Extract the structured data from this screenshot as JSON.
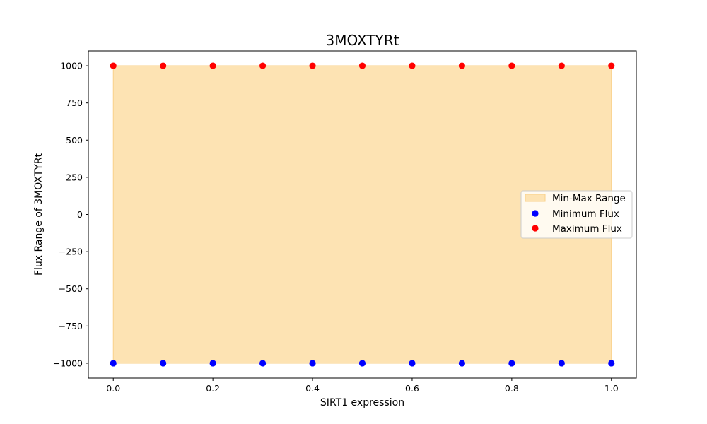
{
  "chart_data": {
    "type": "scatter",
    "title": "3MOXTYRt",
    "xlabel": "SIRT1 expression",
    "ylabel": "Flux Range of 3MOXTYRt",
    "xlim": [
      -0.05,
      1.05
    ],
    "ylim": [
      -1100,
      1100
    ],
    "grid": false,
    "x_ticks": [
      0.0,
      0.2,
      0.4,
      0.6,
      0.8,
      1.0
    ],
    "x_tick_labels": [
      "0.0",
      "0.2",
      "0.4",
      "0.6",
      "0.8",
      "1.0"
    ],
    "y_ticks": [
      -1000,
      -750,
      -500,
      -250,
      0,
      250,
      500,
      750,
      1000
    ],
    "y_tick_labels": [
      "−1000",
      "−750",
      "−500",
      "−250",
      "0",
      "250",
      "500",
      "750",
      "1000"
    ],
    "x": [
      0.0,
      0.1,
      0.2,
      0.3,
      0.4,
      0.5,
      0.6,
      0.7,
      0.8,
      0.9,
      1.0
    ],
    "fill_range": {
      "name": "Min-Max Range",
      "lower": [
        -1000,
        -1000,
        -1000,
        -1000,
        -1000,
        -1000,
        -1000,
        -1000,
        -1000,
        -1000,
        -1000
      ],
      "upper": [
        1000,
        1000,
        1000,
        1000,
        1000,
        1000,
        1000,
        1000,
        1000,
        1000,
        1000
      ],
      "color": "#fde3b3",
      "edge_color": "#f9d08a"
    },
    "series": [
      {
        "name": "Minimum Flux",
        "values": [
          -1000,
          -1000,
          -1000,
          -1000,
          -1000,
          -1000,
          -1000,
          -1000,
          -1000,
          -1000,
          -1000
        ],
        "color": "#0000ff"
      },
      {
        "name": "Maximum Flux",
        "values": [
          1000,
          1000,
          1000,
          1000,
          1000,
          1000,
          1000,
          1000,
          1000,
          1000,
          1000
        ],
        "color": "#ff0000"
      }
    ],
    "legend": {
      "placement": "center-right",
      "entries": [
        "Min-Max Range",
        "Minimum Flux",
        "Maximum Flux"
      ]
    }
  }
}
